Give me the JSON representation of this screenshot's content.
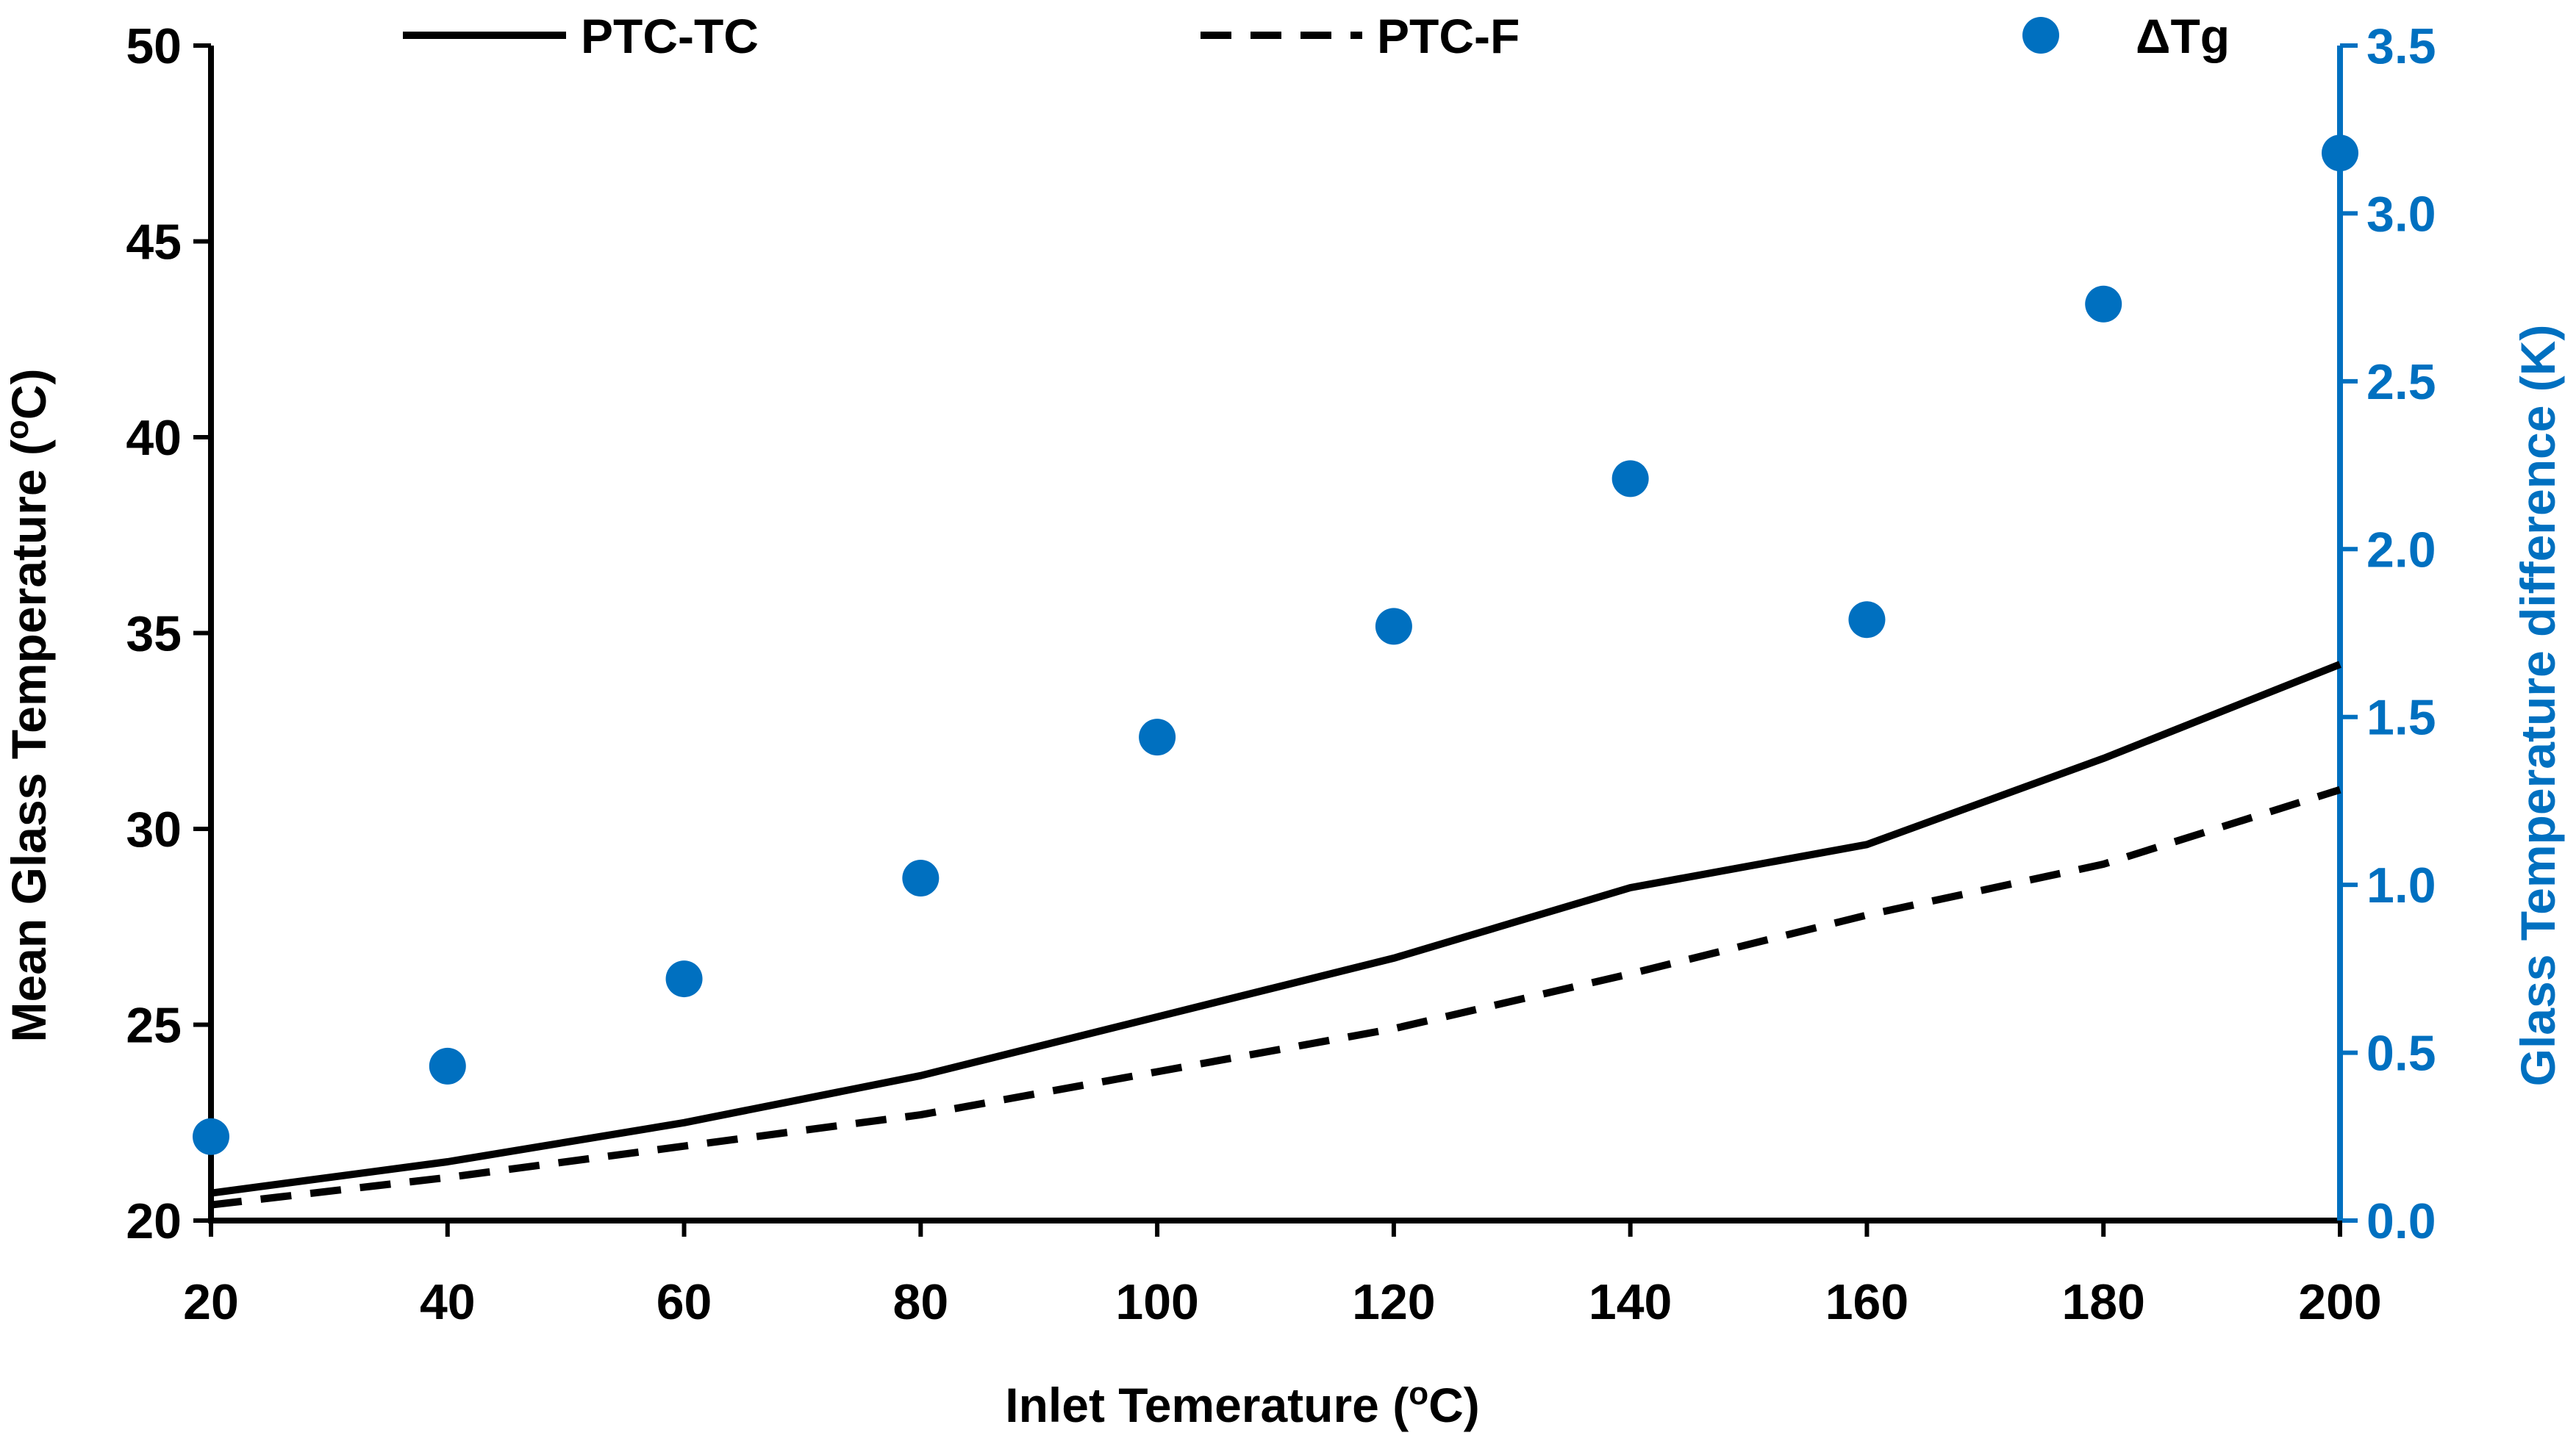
{
  "chart_data": {
    "type": "line",
    "title": "",
    "xlabel": "Inlet Temerature (",
    "xlabel_sup": "o",
    "xlabel_end": "C)",
    "ylabel": "Mean Glass Temperature (",
    "ylabel_sup": "o",
    "ylabel_end": "C)",
    "ylabel_right": "Glass Temperature difference (K)",
    "xlim": [
      20,
      200
    ],
    "ylim": [
      20,
      50
    ],
    "ylim_right": [
      0,
      3.5
    ],
    "x_ticks": [
      "20",
      "40",
      "60",
      "80",
      "100",
      "120",
      "140",
      "160",
      "180",
      "200"
    ],
    "y_ticks": [
      "20",
      "25",
      "30",
      "35",
      "40",
      "45",
      "50"
    ],
    "y_ticks_right": [
      "0.0",
      "0.5",
      "1.0",
      "1.5",
      "2.0",
      "2.5",
      "3.0",
      "3.5"
    ],
    "grid": false,
    "legend_position": "top",
    "series": [
      {
        "name": "PTC-TC",
        "style": "solid",
        "axis": "left",
        "color": "#000000",
        "x": [
          20,
          40,
          60,
          80,
          100,
          120,
          140,
          160,
          180,
          200
        ],
        "values": [
          20.7,
          21.5,
          22.5,
          23.7,
          25.2,
          26.7,
          28.5,
          29.6,
          31.8,
          34.2
        ]
      },
      {
        "name": "PTC-F",
        "style": "dashed",
        "axis": "left",
        "color": "#000000",
        "x": [
          20,
          40,
          60,
          80,
          100,
          120,
          140,
          160,
          180,
          200
        ],
        "values": [
          20.4,
          21.1,
          21.9,
          22.7,
          23.8,
          24.9,
          26.3,
          27.8,
          29.1,
          31.0
        ]
      },
      {
        "name": "ΔTg",
        "style": "marker",
        "axis": "right",
        "color": "#0070c0",
        "x": [
          20,
          40,
          60,
          80,
          100,
          120,
          140,
          160,
          180,
          200
        ],
        "values": [
          0.25,
          0.46,
          0.72,
          1.02,
          1.44,
          1.77,
          2.21,
          1.79,
          2.73,
          3.18
        ]
      }
    ]
  }
}
